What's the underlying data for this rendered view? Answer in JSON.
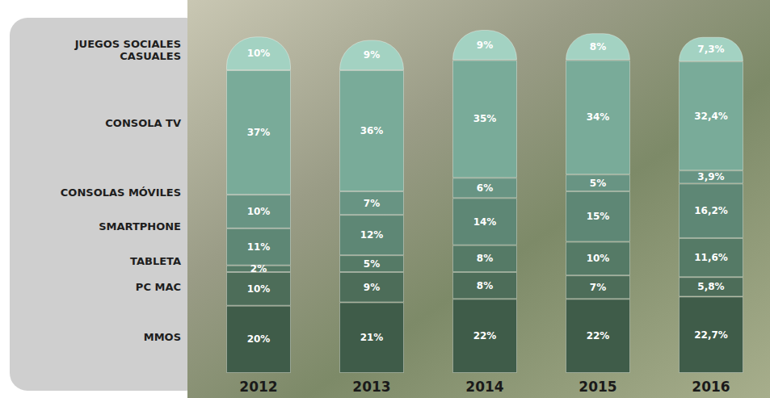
{
  "chart_data": {
    "type": "bar",
    "stacked": true,
    "data_labels": true,
    "tick_labels": "x",
    "legend": "left",
    "categories": [
      "2012",
      "2013",
      "2014",
      "2015",
      "2016"
    ],
    "series": [
      {
        "name": "MMOS",
        "color": "#3f5c49",
        "values": [
          20,
          21,
          22,
          22,
          22.7
        ],
        "value_labels": [
          "20%",
          "21%",
          "22%",
          "22%",
          "22,7%"
        ]
      },
      {
        "name": "PC MAC",
        "color": "#4d6d59",
        "values": [
          10,
          9,
          8,
          7,
          5.8
        ],
        "value_labels": [
          "10%",
          "9%",
          "8%",
          "7%",
          "5,8%"
        ]
      },
      {
        "name": "TABLETA",
        "color": "#557a66",
        "values": [
          2,
          5,
          8,
          10,
          11.6
        ],
        "value_labels": [
          "2%",
          "5%",
          "8%",
          "10%",
          "11,6%"
        ]
      },
      {
        "name": "SMARTPHONE",
        "color": "#5e8775",
        "values": [
          11,
          12,
          14,
          15,
          16.2
        ],
        "value_labels": [
          "11%",
          "12%",
          "14%",
          "15%",
          "16,2%"
        ]
      },
      {
        "name": "CONSOLAS MÓVILES",
        "color": "#689483",
        "values": [
          10,
          7,
          6,
          5,
          3.9
        ],
        "value_labels": [
          "10%",
          "7%",
          "6%",
          "5%",
          "3,9%"
        ]
      },
      {
        "name": "CONSOLA TV",
        "color": "#79ab99",
        "values": [
          37,
          36,
          35,
          34,
          32.4
        ],
        "value_labels": [
          "37%",
          "36%",
          "35%",
          "34%",
          "32,4%"
        ]
      },
      {
        "name": "JUEGOS SOCIALES CASUALES",
        "color": "#a3d2c2",
        "values": [
          10,
          9,
          9,
          8,
          7.3
        ],
        "value_labels": [
          "10%",
          "9%",
          "9%",
          "8%",
          "7,3%"
        ]
      }
    ]
  }
}
